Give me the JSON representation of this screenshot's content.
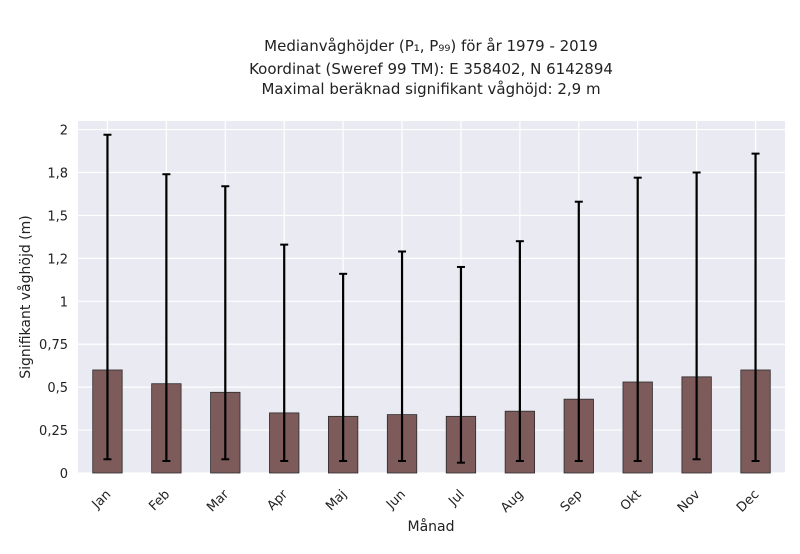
{
  "chart_data": {
    "type": "bar",
    "title_lines": [
      "Medianvåghöjder (P₁, P₉₉) för år 1979 - 2019",
      "Koordinat (Sweref 99 TM): E 358402, N 6142894",
      "Maximal beräknad signifikant våghöjd: 2,9 m"
    ],
    "xlabel": "Månad",
    "ylabel": "Signifikant våghöjd (m)",
    "categories": [
      "Jan",
      "Feb",
      "Mar",
      "Apr",
      "Maj",
      "Jun",
      "Jul",
      "Aug",
      "Sep",
      "Okt",
      "Nov",
      "Dec"
    ],
    "values": [
      0.6,
      0.52,
      0.47,
      0.35,
      0.33,
      0.34,
      0.33,
      0.36,
      0.43,
      0.53,
      0.56,
      0.6
    ],
    "err_low": [
      0.08,
      0.07,
      0.08,
      0.07,
      0.07,
      0.07,
      0.06,
      0.07,
      0.07,
      0.07,
      0.08,
      0.07
    ],
    "err_high": [
      1.97,
      1.74,
      1.67,
      1.33,
      1.16,
      1.29,
      1.2,
      1.35,
      1.58,
      1.72,
      1.75,
      1.86
    ],
    "ylim": [
      0,
      2.05
    ],
    "yticks": [
      0,
      0.25,
      0.5,
      0.75,
      1.0,
      1.25,
      1.5,
      1.75,
      2.0
    ],
    "ytick_labels": [
      "0",
      "0,25",
      "0,5",
      "0,75",
      "1",
      "1,2",
      "1,5",
      "1,8",
      "2"
    ],
    "grid": true,
    "colors": {
      "bar_fill": "#7d5b5b",
      "bar_edge": "#2b2b2b",
      "plot_background": "#eaeaf2",
      "grid": "#ffffff",
      "error_bar": "#000000"
    }
  }
}
